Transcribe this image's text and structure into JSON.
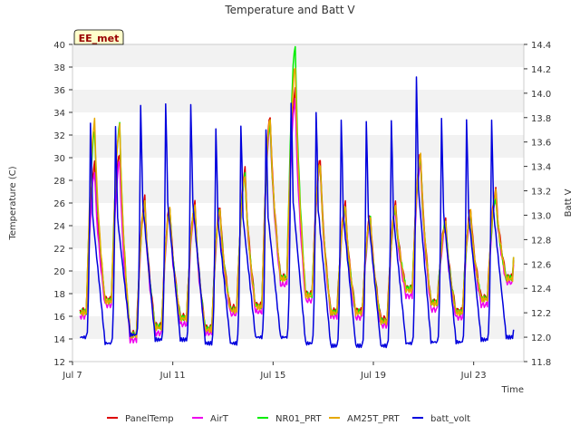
{
  "chart_data": {
    "type": "line",
    "title": "Temperature and Batt V",
    "station_label": "EE_met",
    "xlabel": "Time",
    "ylabel": "Temperature (C)",
    "y2label": "Batt V",
    "xlim": [
      7.0,
      25.0
    ],
    "ylim": [
      12,
      40
    ],
    "y2lim": [
      11.8,
      14.4
    ],
    "x_ticks": [
      {
        "value": 7,
        "label": "Jul 7"
      },
      {
        "value": 11,
        "label": "Jul 11"
      },
      {
        "value": 15,
        "label": "Jul 15"
      },
      {
        "value": 19,
        "label": "Jul 19"
      },
      {
        "value": 23,
        "label": "Jul 23"
      }
    ],
    "y_ticks": [
      "12",
      "14",
      "16",
      "18",
      "20",
      "22",
      "24",
      "26",
      "28",
      "30",
      "32",
      "34",
      "36",
      "38",
      "40"
    ],
    "y2_ticks": [
      "11.8",
      "12.0",
      "12.2",
      "12.4",
      "12.6",
      "12.8",
      "13.0",
      "13.2",
      "13.4",
      "13.6",
      "13.8",
      "14.0",
      "14.2",
      "14.4"
    ],
    "grid": "horizontal bands",
    "legend_position": "bottom",
    "days": [
      7,
      8,
      9,
      10,
      11,
      12,
      13,
      14,
      15,
      16,
      17,
      18,
      19,
      20,
      21,
      22,
      23,
      24
    ],
    "series": [
      {
        "name": "PanelTemp",
        "color": "#dd0000",
        "axis": "left",
        "highs": [
          29.5,
          30.5,
          26.5,
          25.8,
          26,
          25.8,
          29,
          33.8,
          36,
          30,
          26,
          25,
          26,
          30.5,
          24.5,
          25.5,
          27.2,
          28.7
        ],
        "lows": [
          16.5,
          17.5,
          14.5,
          15.2,
          16,
          15,
          16.8,
          17,
          19.5,
          18,
          16.5,
          16.5,
          15.8,
          18.5,
          17.3,
          16.5,
          17.7,
          19.5
        ]
      },
      {
        "name": "AirT",
        "color": "#ee00ee",
        "axis": "left",
        "highs": [
          28.8,
          29.8,
          25.8,
          25.2,
          25.3,
          25.2,
          28.5,
          33,
          35.2,
          29.2,
          25.3,
          24.3,
          25.3,
          29.6,
          23.8,
          24.8,
          26.5,
          28
        ],
        "lows": [
          16,
          17,
          13.9,
          14.5,
          15.3,
          14.5,
          16.2,
          16.4,
          18.8,
          17.4,
          16,
          15.9,
          15.2,
          17.8,
          16.6,
          15.9,
          17,
          19
        ]
      },
      {
        "name": "NR01_PRT",
        "color": "#00ee00",
        "axis": "left",
        "highs": [
          32.5,
          33,
          26,
          25.5,
          25.8,
          25.5,
          28.5,
          33.2,
          40,
          29.5,
          25.6,
          24.6,
          25.6,
          30,
          24.4,
          25,
          26.5,
          28.5
        ],
        "lows": [
          16.4,
          17.4,
          14.4,
          15.1,
          15.9,
          14.9,
          16.6,
          16.9,
          19.4,
          17.9,
          16.4,
          16.4,
          15.6,
          18.5,
          17.2,
          16.4,
          17.6,
          19.4
        ]
      },
      {
        "name": "AM25T_PRT",
        "color": "#e6a800",
        "axis": "left",
        "highs": [
          33.3,
          32.8,
          26,
          25.5,
          25.8,
          25.5,
          28.5,
          33.6,
          38.2,
          29.5,
          25.8,
          24.8,
          25.8,
          30.3,
          24.2,
          25.2,
          27,
          28.3
        ],
        "lows": [
          16.3,
          17.3,
          14.3,
          15,
          15.8,
          14.8,
          16.5,
          16.8,
          19.3,
          17.8,
          16.3,
          16.3,
          15.5,
          18.3,
          17.1,
          16.3,
          17.5,
          19.3
        ]
      },
      {
        "name": "batt_volt",
        "color": "#0000dd",
        "axis": "right",
        "highs": [
          13.83,
          13.8,
          13.98,
          14.0,
          14.0,
          13.8,
          13.83,
          13.8,
          14.03,
          13.95,
          13.88,
          13.86,
          13.86,
          14.23,
          13.87,
          13.86,
          13.86,
          13.82
        ],
        "lows": [
          12.0,
          11.95,
          12.02,
          11.98,
          11.98,
          11.95,
          11.95,
          12.0,
          12.0,
          11.95,
          11.93,
          11.93,
          11.93,
          11.95,
          11.96,
          11.96,
          11.98,
          12.0
        ]
      }
    ]
  }
}
